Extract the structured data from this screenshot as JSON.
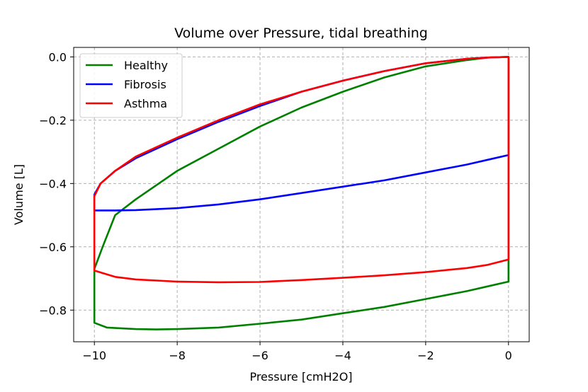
{
  "chart_data": {
    "type": "line",
    "title": "Volume over Pressure, tidal breathing",
    "xlabel": "Pressure [cmH2O]",
    "ylabel": "Volume [L]",
    "xlim": [
      -10.5,
      0.5
    ],
    "ylim": [
      -0.9,
      0.03
    ],
    "grid": true,
    "legend_position": "top-left",
    "xticks": [
      -10,
      -8,
      -6,
      -4,
      -2,
      0
    ],
    "xtick_labels": [
      "−10",
      "−8",
      "−6",
      "−4",
      "−2",
      "0"
    ],
    "yticks": [
      0.0,
      -0.2,
      -0.4,
      -0.6,
      -0.8
    ],
    "ytick_labels": [
      "0.0",
      "−0.2",
      "−0.4",
      "−0.6",
      "−0.8"
    ],
    "series": [
      {
        "name": "Healthy",
        "color": "#008000",
        "x": [
          0,
          -0.5,
          -1,
          -2,
          -3,
          -4,
          -5,
          -6,
          -7,
          -8,
          -9,
          -9.5,
          -9.8,
          -10,
          -10,
          -10,
          -9.7,
          -9,
          -8.5,
          -8,
          -7,
          -6,
          -5,
          -4,
          -3,
          -2,
          -1,
          -0.5,
          0,
          0
        ],
        "y": [
          0.0,
          -0.002,
          -0.01,
          -0.03,
          -0.065,
          -0.11,
          -0.16,
          -0.22,
          -0.29,
          -0.36,
          -0.45,
          -0.5,
          -0.6,
          -0.67,
          -0.76,
          -0.84,
          -0.855,
          -0.86,
          -0.861,
          -0.86,
          -0.855,
          -0.843,
          -0.83,
          -0.81,
          -0.79,
          -0.765,
          -0.74,
          -0.725,
          -0.71,
          0.0
        ]
      },
      {
        "name": "Fibrosis",
        "color": "#0000ff",
        "x": [
          0,
          -0.5,
          -1,
          -2,
          -3,
          -4,
          -5,
          -6,
          -7,
          -8,
          -9,
          -9.5,
          -9.85,
          -10,
          -10,
          -9.5,
          -9,
          -8,
          -7,
          -6,
          -5,
          -4,
          -3,
          -2,
          -1,
          -0.5,
          0,
          0
        ],
        "y": [
          0.0,
          -0.002,
          -0.006,
          -0.02,
          -0.045,
          -0.075,
          -0.11,
          -0.155,
          -0.205,
          -0.26,
          -0.32,
          -0.36,
          -0.4,
          -0.435,
          -0.485,
          -0.485,
          -0.484,
          -0.478,
          -0.466,
          -0.45,
          -0.43,
          -0.41,
          -0.39,
          -0.365,
          -0.34,
          -0.325,
          -0.31,
          0.0
        ]
      },
      {
        "name": "Asthma",
        "color": "#ff0000",
        "x": [
          0,
          -0.5,
          -1,
          -2,
          -3,
          -4,
          -5,
          -6,
          -7,
          -8,
          -9,
          -9.5,
          -9.85,
          -10,
          -10,
          -10,
          -9.5,
          -9,
          -8,
          -7,
          -6,
          -5,
          -4,
          -3,
          -2,
          -1,
          -0.5,
          0,
          0
        ],
        "y": [
          0.0,
          -0.002,
          -0.006,
          -0.02,
          -0.045,
          -0.075,
          -0.11,
          -0.15,
          -0.2,
          -0.255,
          -0.315,
          -0.36,
          -0.4,
          -0.44,
          -0.5,
          -0.675,
          -0.695,
          -0.703,
          -0.71,
          -0.712,
          -0.711,
          -0.705,
          -0.698,
          -0.69,
          -0.68,
          -0.667,
          -0.657,
          -0.64,
          0.0
        ]
      }
    ]
  }
}
